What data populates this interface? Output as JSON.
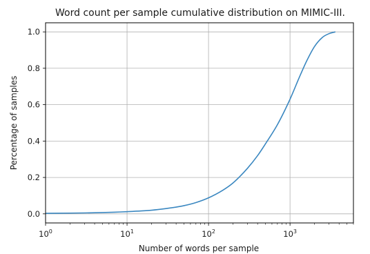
{
  "chart_data": {
    "type": "line",
    "title": "Word count per sample cumulative distribution on MIMIC-III.",
    "xlabel": "Number of words per sample",
    "ylabel": "Percentage of samples",
    "xscale": "log",
    "xlim": [
      1,
      6000
    ],
    "ylim": [
      -0.05,
      1.05
    ],
    "grid": true,
    "x_ticks": [
      {
        "value": 1,
        "base": "10",
        "exp": "0"
      },
      {
        "value": 10,
        "base": "10",
        "exp": "1"
      },
      {
        "value": 100,
        "base": "10",
        "exp": "2"
      },
      {
        "value": 1000,
        "base": "10",
        "exp": "3"
      }
    ],
    "y_ticks": [
      {
        "value": 0.0,
        "label": "0.0"
      },
      {
        "value": 0.2,
        "label": "0.2"
      },
      {
        "value": 0.4,
        "label": "0.4"
      },
      {
        "value": 0.6,
        "label": "0.6"
      },
      {
        "value": 0.8,
        "label": "0.8"
      },
      {
        "value": 1.0,
        "label": "1.0"
      }
    ],
    "series": [
      {
        "color": "#3a87c0",
        "x": [
          1,
          2,
          3,
          5,
          7,
          10,
          15,
          20,
          30,
          40,
          50,
          70,
          100,
          150,
          200,
          300,
          400,
          500,
          700,
          1000,
          1300,
          1600,
          2000,
          2500,
          3000,
          3600
        ],
        "y": [
          0.003,
          0.004,
          0.005,
          0.007,
          0.009,
          0.012,
          0.016,
          0.02,
          0.029,
          0.037,
          0.045,
          0.062,
          0.088,
          0.13,
          0.17,
          0.25,
          0.32,
          0.385,
          0.49,
          0.63,
          0.75,
          0.84,
          0.92,
          0.97,
          0.99,
          1.0
        ]
      }
    ]
  }
}
